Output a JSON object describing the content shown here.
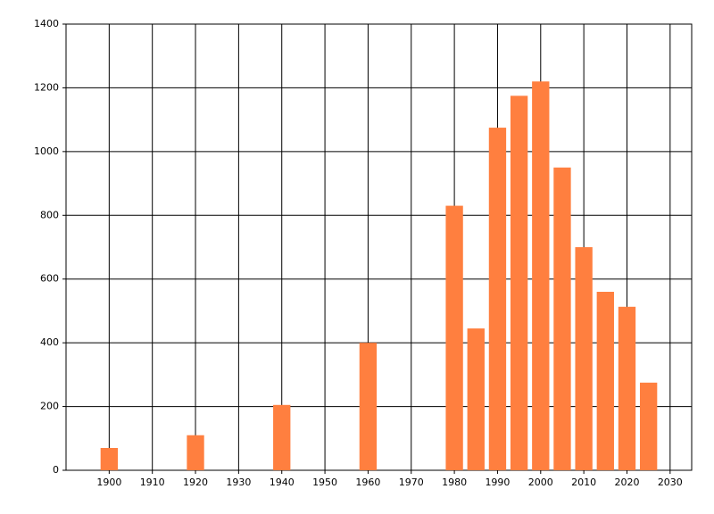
{
  "chart_data": {
    "type": "bar",
    "x": [
      1900,
      1920,
      1940,
      1960,
      1980,
      1985,
      1990,
      1995,
      2000,
      2005,
      2010,
      2015,
      2020,
      2025
    ],
    "values": [
      70,
      110,
      205,
      400,
      830,
      445,
      1075,
      1175,
      1220,
      950,
      700,
      560,
      513,
      275
    ],
    "color": "#ff7f3f",
    "xlim": [
      1890,
      2035
    ],
    "xticks": [
      1900,
      1910,
      1920,
      1930,
      1940,
      1950,
      1960,
      1970,
      1980,
      1990,
      2000,
      2010,
      2020,
      2030
    ],
    "ylim": [
      0,
      1400
    ],
    "yticks": [
      0,
      200,
      400,
      600,
      800,
      1000,
      1200,
      1400
    ],
    "grid": true
  }
}
